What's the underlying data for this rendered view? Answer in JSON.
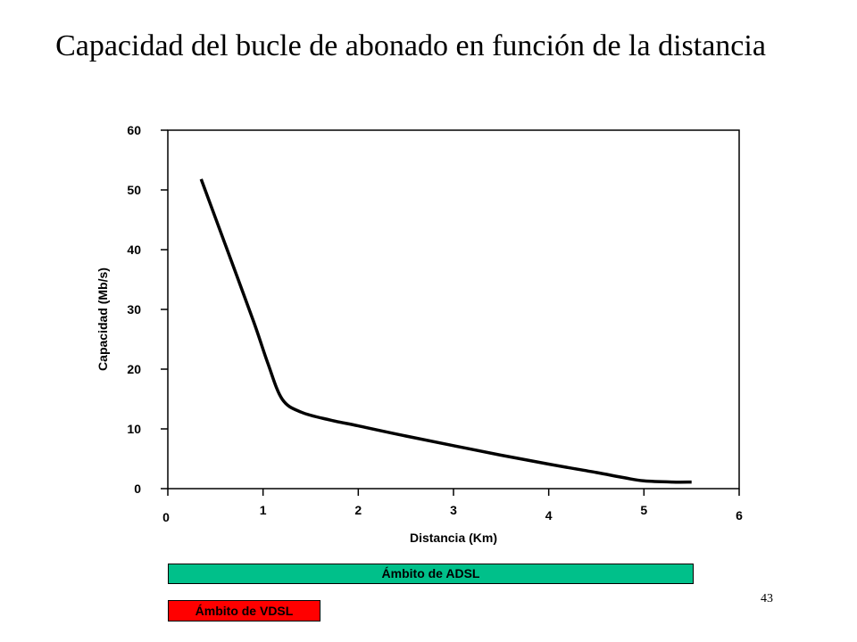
{
  "slide": {
    "title": "Capacidad del bucle de abonado en función de la distancia",
    "page_number": "43"
  },
  "chart_data": {
    "type": "line",
    "title": "",
    "xlabel": "Distancia (Km)",
    "ylabel": "Capacidad (Mb/s)",
    "xlim": [
      0,
      6
    ],
    "ylim": [
      0,
      60
    ],
    "x_ticks": [
      "0",
      "1",
      "2",
      "3",
      "4",
      "5",
      "6"
    ],
    "y_ticks": [
      "0",
      "10",
      "20",
      "30",
      "40",
      "50",
      "60"
    ],
    "grid": false,
    "legend": "none",
    "line_color": "#000000",
    "series": [
      {
        "x": [
          0.35,
          0.6,
          0.9,
          1.05,
          1.2,
          1.4,
          1.7,
          2.0,
          2.5,
          3.0,
          3.5,
          4.0,
          4.5,
          4.8,
          5.0,
          5.3,
          5.5
        ],
        "y": [
          51.8,
          41,
          28,
          21,
          15,
          12.8,
          11.5,
          10.5,
          8.8,
          7.2,
          5.6,
          4.1,
          2.7,
          1.8,
          1.3,
          1.1,
          1.1
        ]
      }
    ]
  },
  "ranges": {
    "adsl": {
      "label": "Ámbito de ADSL",
      "color": "#00c08a"
    },
    "vdsl": {
      "label": "Ámbito de VDSL",
      "color": "#ff0000"
    }
  }
}
